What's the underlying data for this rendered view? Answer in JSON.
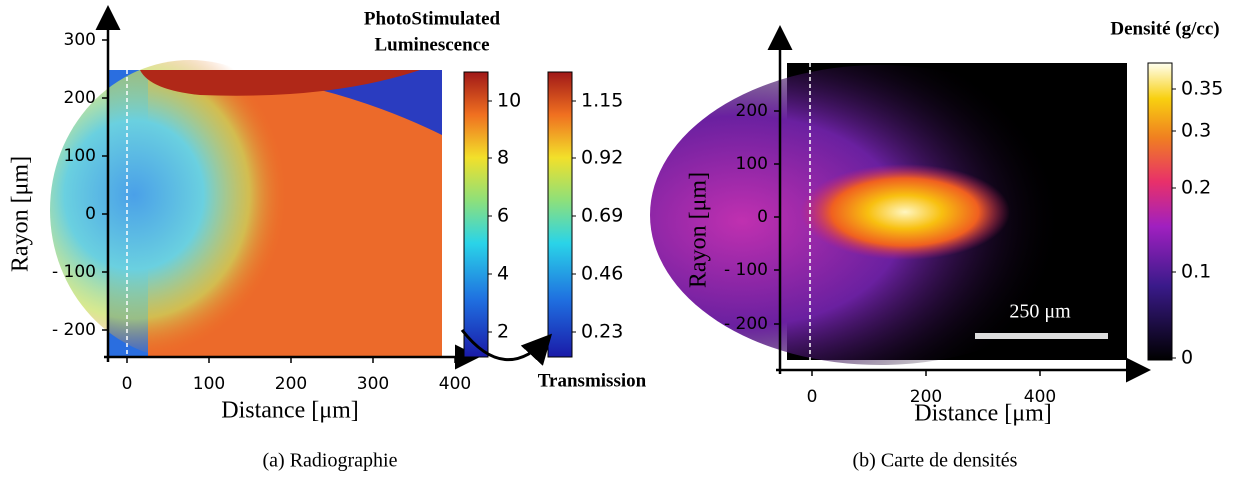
{
  "panels": [
    {
      "caption": "(a) Radiographie",
      "x_label": "Distance [μm]",
      "y_label": "Rayon [μm]",
      "x_ticks": [
        "0",
        "100",
        "200",
        "300",
        "400"
      ],
      "y_ticks": [
        "300",
        "200",
        "100",
        "0",
        "- 100",
        "- 200"
      ],
      "colorbar_title": [
        "PhotoStimulated",
        "Luminescence"
      ],
      "colorbar_ticks": [
        "10",
        "8",
        "6",
        "4",
        "2"
      ],
      "colorbar2_title": "Transmission",
      "colorbar2_ticks": [
        "1.15",
        "0.92",
        "0.69",
        "0.46",
        "0.23"
      ]
    },
    {
      "caption": "(b) Carte de densités",
      "x_label": "Distance [μm]",
      "y_label": "Rayon [μm]",
      "x_ticks": [
        "0",
        "200",
        "400"
      ],
      "y_ticks": [
        "200",
        "100",
        "0",
        "- 100",
        "- 200"
      ],
      "colorbar_title": "Densité (g/cc)",
      "colorbar_ticks": [
        "0.35",
        "0.3",
        "0.2",
        "0.1",
        "0"
      ],
      "scale_bar": "250 μm"
    }
  ]
}
